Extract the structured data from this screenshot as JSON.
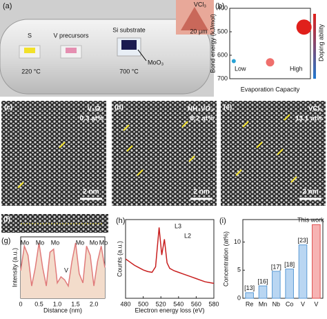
{
  "panel_labels": [
    "(a)",
    "(b)",
    "(c)",
    "(d)",
    "(e)",
    "(f)",
    "(g)",
    "(h)",
    "(i)"
  ],
  "setup": {
    "boats": [
      "S",
      "V precursors",
      "Si substrate"
    ],
    "temperatures": [
      "220 °C",
      "700 °C"
    ],
    "substrate": "MoO₃",
    "inset_label": "VCl₃",
    "inset_scale": "20 μm"
  },
  "stem_images": [
    {
      "precursor": "V₂O₅",
      "concentration": "0.3 at%",
      "scale": "2 nm"
    },
    {
      "precursor": "NH₄VO₃",
      "concentration": "8.2 at%",
      "scale": "2 nm"
    },
    {
      "precursor": "VCl₃",
      "concentration": "13.1 at%",
      "scale": "2 nm"
    }
  ],
  "chart_data": [
    {
      "type": "scatter",
      "y_label": "Bond energy (kJ/mol)",
      "x_label": "Evaporation Capacity",
      "x_low": "Low",
      "x_high": "High",
      "side_label": "Doping ability",
      "x": [
        0.5,
        5,
        9.2
      ],
      "values": [
        625,
        630,
        480
      ],
      "sizes": [
        3,
        6,
        11
      ],
      "colors": [
        "#29a3d6",
        "#ef6f6c",
        "#e0201b"
      ],
      "xlim": [
        0,
        10
      ],
      "ylim": [
        400,
        700
      ],
      "y_inverted": true,
      "yticks": [
        400,
        500,
        600,
        700
      ]
    },
    {
      "type": "line",
      "x_label": "Distance (nm)",
      "y_label": "Intensity (a.u.)",
      "annotations": [
        "Mo",
        "Mo",
        "Mo",
        "V",
        "Mo",
        "Mo",
        "Mo"
      ],
      "x": [
        0,
        0.1,
        0.2,
        0.3,
        0.4,
        0.5,
        0.6,
        0.7,
        0.8,
        0.9,
        1.0,
        1.1,
        1.2,
        1.3,
        1.4,
        1.5,
        1.6,
        1.7,
        1.8,
        1.9,
        2.0,
        2.1,
        2.2,
        2.3
      ],
      "values": [
        0.45,
        0.85,
        0.7,
        0.2,
        0.5,
        0.9,
        0.5,
        0.2,
        0.75,
        0.8,
        0.25,
        0.35,
        0.3,
        0.2,
        0.6,
        0.9,
        0.4,
        0.25,
        0.85,
        0.7,
        0.2,
        0.6,
        0.85,
        0.5
      ],
      "color": "#e07a7a",
      "area_color": "#f3dccb",
      "xlim": [
        0,
        2.3
      ],
      "ylim": [
        0,
        1
      ],
      "xticks": [
        0,
        0.5,
        {
          "value": 1,
          "label": "1.0"
        },
        1.5,
        {
          "value": 2,
          "label": "2.0"
        }
      ]
    },
    {
      "type": "line",
      "x_label": "Electron energy loss (eV)",
      "y_label": "Counts (a.u.)",
      "annotations": [
        "L3",
        "L2"
      ],
      "x": [
        480,
        485,
        490,
        495,
        500,
        505,
        510,
        514,
        518,
        521,
        524,
        527,
        530,
        535,
        540,
        545,
        550,
        555,
        560,
        565,
        570,
        575,
        580
      ],
      "values": [
        0.5,
        0.46,
        0.42,
        0.39,
        0.36,
        0.34,
        0.33,
        0.4,
        0.9,
        0.55,
        0.75,
        0.45,
        0.38,
        0.35,
        0.33,
        0.31,
        0.29,
        0.27,
        0.25,
        0.23,
        0.21,
        0.2,
        0.19
      ],
      "color": "#c81e1e",
      "xlim": [
        480,
        580
      ],
      "ylim": [
        0,
        1
      ],
      "xticks": [
        480,
        500,
        520,
        540,
        560,
        580
      ]
    },
    {
      "type": "bar",
      "y_label": "Concentration (at%)",
      "categories": [
        "Re",
        "Mn",
        "Nb",
        "Co",
        "V",
        "V"
      ],
      "values": [
        1,
        2.2,
        4.8,
        5.2,
        9.5,
        13.1
      ],
      "annotations": [
        "[13]",
        "[16]",
        "[17]",
        "[18]",
        "[23]",
        "This work"
      ],
      "colors": [
        "#b9d6f2",
        "#b9d6f2",
        "#b9d6f2",
        "#b9d6f2",
        "#b9d6f2",
        "#f6b3b3"
      ],
      "edge_colors": [
        "#5b9bd5",
        "#5b9bd5",
        "#5b9bd5",
        "#5b9bd5",
        "#5b9bd5",
        "#e05252"
      ],
      "ylim": [
        0,
        14
      ],
      "yticks": [
        0,
        5,
        10
      ]
    }
  ]
}
